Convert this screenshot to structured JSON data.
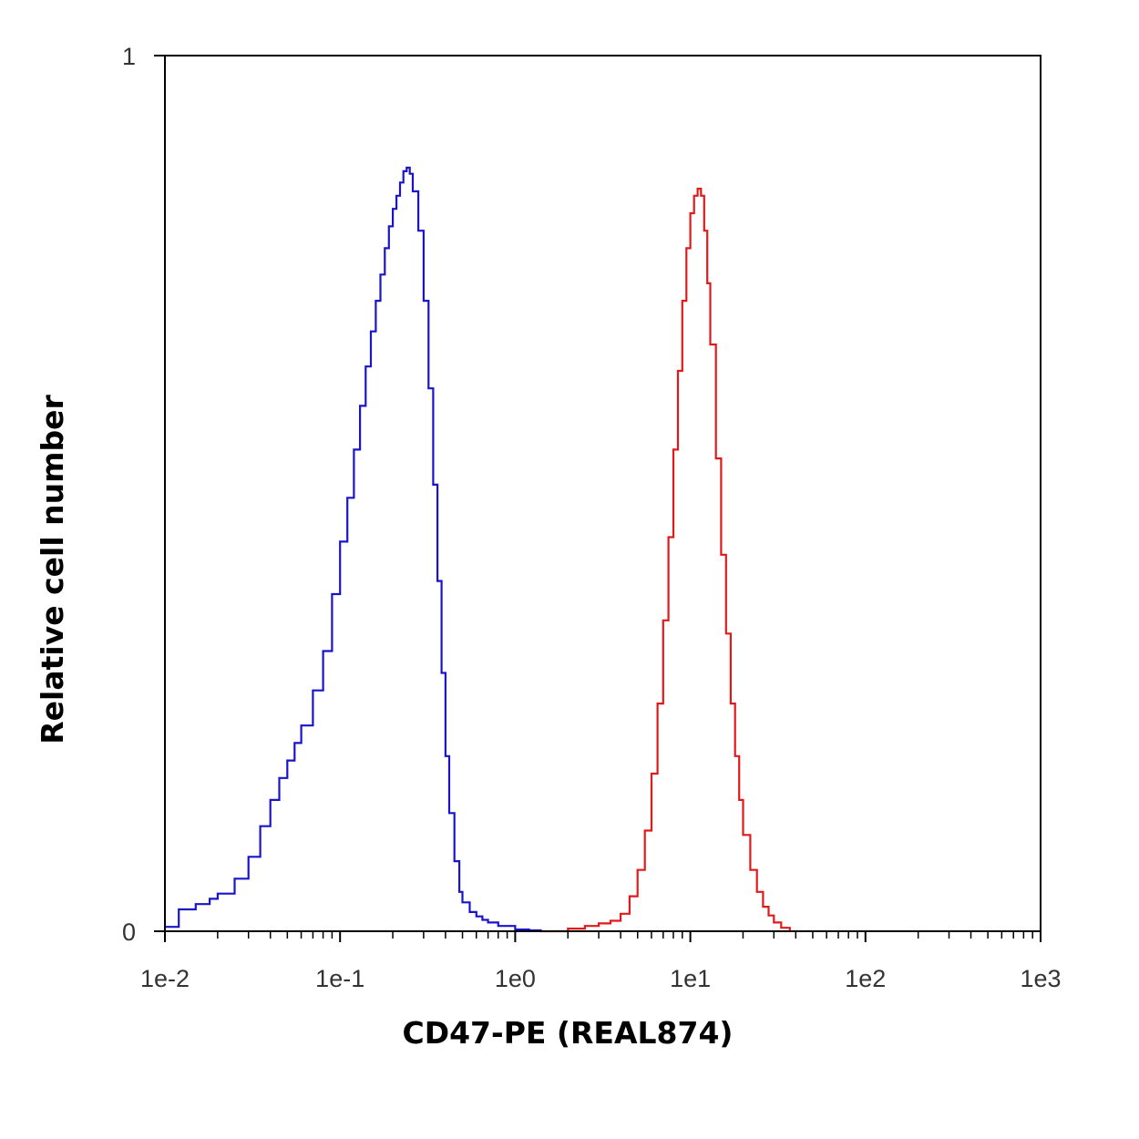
{
  "chart_data": {
    "type": "line",
    "title": "",
    "xlabel": "CD47-PE (REAL874)",
    "ylabel": "Relative cell number",
    "x_scale": "log",
    "xlim": [
      0.01,
      1000
    ],
    "ylim": [
      0,
      1
    ],
    "x_ticks": [
      0.01,
      0.1,
      1,
      10,
      100,
      1000
    ],
    "x_tick_labels": [
      "1e-2",
      "1e-1",
      "1e0",
      "1e1",
      "1e2",
      "1e3"
    ],
    "y_ticks": [
      0,
      1
    ],
    "y_tick_labels": [
      "0",
      "1"
    ],
    "grid": false,
    "legend": "none",
    "series": [
      {
        "color": "#1a14c8",
        "x": [
          0.01,
          0.012,
          0.015,
          0.018,
          0.02,
          0.025,
          0.03,
          0.035,
          0.04,
          0.045,
          0.05,
          0.055,
          0.06,
          0.07,
          0.08,
          0.09,
          0.1,
          0.11,
          0.12,
          0.13,
          0.14,
          0.15,
          0.16,
          0.17,
          0.18,
          0.19,
          0.2,
          0.21,
          0.22,
          0.23,
          0.24,
          0.25,
          0.26,
          0.28,
          0.3,
          0.32,
          0.34,
          0.36,
          0.38,
          0.4,
          0.42,
          0.45,
          0.48,
          0.5,
          0.55,
          0.6,
          0.65,
          0.7,
          0.8,
          1.0,
          1.2,
          1.4
        ],
        "y": [
          0.005,
          0.025,
          0.031,
          0.037,
          0.043,
          0.06,
          0.085,
          0.12,
          0.15,
          0.175,
          0.195,
          0.215,
          0.235,
          0.275,
          0.32,
          0.385,
          0.445,
          0.495,
          0.55,
          0.6,
          0.645,
          0.685,
          0.72,
          0.75,
          0.78,
          0.805,
          0.825,
          0.84,
          0.855,
          0.868,
          0.872,
          0.865,
          0.845,
          0.8,
          0.72,
          0.62,
          0.51,
          0.4,
          0.295,
          0.2,
          0.135,
          0.08,
          0.045,
          0.033,
          0.022,
          0.017,
          0.013,
          0.01,
          0.006,
          0.002,
          0.001,
          0.0
        ]
      },
      {
        "color": "#e01a1a",
        "x": [
          1.4,
          2.0,
          2.5,
          3.0,
          3.5,
          4.0,
          4.5,
          5.0,
          5.5,
          6.0,
          6.5,
          7.0,
          7.5,
          8.0,
          8.5,
          9.0,
          9.5,
          10.0,
          10.5,
          11.0,
          11.5,
          12.0,
          12.5,
          13.0,
          14.0,
          15.0,
          16.0,
          17.0,
          18.0,
          19.0,
          20.0,
          22.0,
          24.0,
          26.0,
          28.0,
          30.0,
          33.0,
          37.0
        ],
        "y": [
          0.0,
          0.003,
          0.006,
          0.009,
          0.012,
          0.02,
          0.04,
          0.07,
          0.115,
          0.18,
          0.26,
          0.355,
          0.45,
          0.55,
          0.64,
          0.72,
          0.78,
          0.82,
          0.84,
          0.848,
          0.84,
          0.8,
          0.74,
          0.67,
          0.54,
          0.43,
          0.34,
          0.26,
          0.2,
          0.15,
          0.11,
          0.07,
          0.045,
          0.028,
          0.018,
          0.01,
          0.004,
          0.001
        ]
      }
    ]
  }
}
